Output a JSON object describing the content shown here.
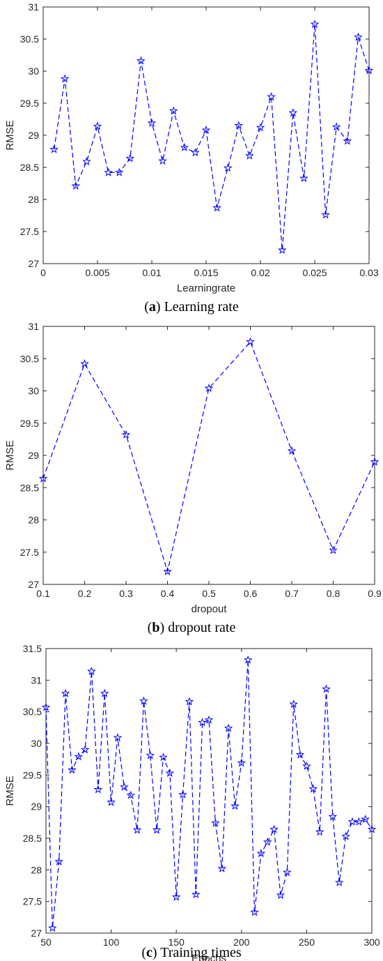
{
  "series_color": "#0000ff",
  "marker": "pentagram",
  "line_style": "dashed",
  "chart_data": [
    {
      "type": "line",
      "caption_letter": "a",
      "caption_text": "Learning rate",
      "xlabel": "Learningrate",
      "ylabel": "RMSE",
      "xlim": [
        0,
        0.03
      ],
      "ylim": [
        27,
        31
      ],
      "xticks": [
        0,
        0.005,
        0.01,
        0.015,
        0.02,
        0.025,
        0.03
      ],
      "xtick_labels": [
        "0",
        "0.005",
        "0.01",
        "0.015",
        "0.02",
        "0.025",
        "0.03"
      ],
      "yticks": [
        27,
        27.5,
        28,
        28.5,
        29,
        29.5,
        30,
        30.5,
        31
      ],
      "ytick_labels": [
        "27",
        "27.5",
        "28",
        "28.5",
        "29",
        "29.5",
        "30",
        "30.5",
        "31"
      ],
      "x": [
        0.001,
        0.002,
        0.003,
        0.004,
        0.005,
        0.006,
        0.007,
        0.008,
        0.009,
        0.01,
        0.011,
        0.012,
        0.013,
        0.014,
        0.015,
        0.016,
        0.017,
        0.018,
        0.019,
        0.02,
        0.021,
        0.022,
        0.023,
        0.024,
        0.025,
        0.026,
        0.027,
        0.028,
        0.029,
        0.03
      ],
      "y": [
        28.78,
        29.88,
        28.21,
        28.59,
        29.14,
        28.42,
        28.42,
        28.64,
        30.16,
        29.19,
        28.6,
        29.38,
        28.81,
        28.73,
        29.08,
        27.87,
        28.49,
        29.15,
        28.68,
        29.12,
        29.6,
        27.21,
        29.35,
        28.33,
        30.73,
        27.76,
        29.13,
        28.91,
        30.53,
        30.01
      ]
    },
    {
      "type": "line",
      "caption_letter": "b",
      "caption_text": "dropout rate",
      "xlabel": "dropout",
      "ylabel": "RMSE",
      "xlim": [
        0.1,
        0.9
      ],
      "ylim": [
        27,
        31
      ],
      "xticks": [
        0.1,
        0.2,
        0.3,
        0.4,
        0.5,
        0.6,
        0.7,
        0.8,
        0.9
      ],
      "xtick_labels": [
        "0.1",
        "0.2",
        "0.3",
        "0.4",
        "0.5",
        "0.6",
        "0.7",
        "0.8",
        "0.9"
      ],
      "yticks": [
        27,
        27.5,
        28,
        28.5,
        29,
        29.5,
        30,
        30.5,
        31
      ],
      "ytick_labels": [
        "27",
        "27.5",
        "28",
        "28.5",
        "29",
        "29.5",
        "30",
        "30.5",
        "31"
      ],
      "x": [
        0.1,
        0.2,
        0.3,
        0.4,
        0.5,
        0.6,
        0.7,
        0.8,
        0.9
      ],
      "y": [
        28.64,
        30.42,
        29.32,
        27.2,
        30.04,
        30.76,
        29.07,
        27.53,
        28.9
      ]
    },
    {
      "type": "line",
      "caption_letter": "c",
      "caption_text": "Training times",
      "xlabel": "Epochs",
      "ylabel": "RMSE",
      "xlim": [
        50,
        300
      ],
      "ylim": [
        27,
        31.5
      ],
      "xticks": [
        50,
        100,
        150,
        200,
        250,
        300
      ],
      "xtick_labels": [
        "50",
        "100",
        "150",
        "200",
        "250",
        "300"
      ],
      "yticks": [
        27,
        27.5,
        28,
        28.5,
        29,
        29.5,
        30,
        30.5,
        31,
        31.5
      ],
      "ytick_labels": [
        "27",
        "27.5",
        "28",
        "28.5",
        "29",
        "29.5",
        "30",
        "30.5",
        "31",
        "31.5"
      ],
      "x": [
        50,
        55,
        60,
        65,
        70,
        75,
        80,
        85,
        90,
        95,
        100,
        105,
        110,
        115,
        120,
        125,
        130,
        135,
        140,
        145,
        150,
        155,
        160,
        165,
        170,
        175,
        180,
        185,
        190,
        195,
        200,
        205,
        210,
        215,
        220,
        225,
        230,
        235,
        240,
        245,
        250,
        255,
        260,
        265,
        270,
        275,
        280,
        285,
        290,
        295,
        300
      ],
      "y": [
        30.57,
        27.08,
        28.13,
        30.79,
        29.58,
        29.79,
        29.9,
        31.14,
        29.27,
        30.79,
        29.07,
        30.09,
        29.31,
        29.18,
        28.63,
        30.67,
        29.81,
        28.63,
        29.78,
        29.53,
        27.57,
        29.19,
        30.66,
        27.61,
        30.33,
        30.37,
        28.74,
        28.02,
        30.24,
        29.01,
        29.69,
        31.32,
        27.33,
        28.26,
        28.44,
        28.64,
        27.6,
        27.96,
        30.62,
        29.82,
        29.64,
        29.28,
        28.6,
        30.86,
        28.84,
        27.8,
        28.53,
        28.76,
        28.76,
        28.8,
        28.64
      ]
    }
  ]
}
